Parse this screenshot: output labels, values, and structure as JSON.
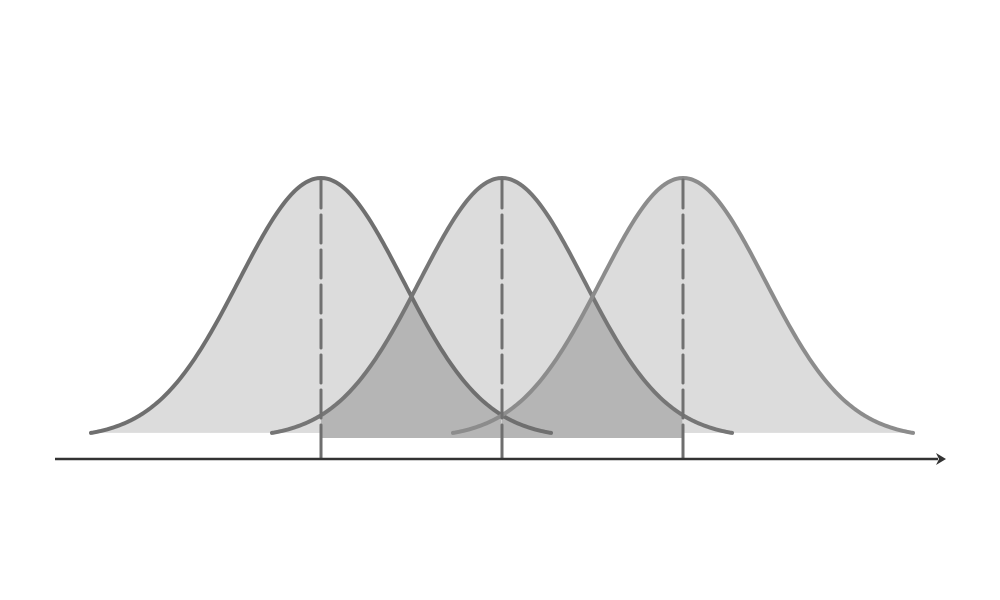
{
  "diagram": {
    "type": "overlapping-normal-distributions",
    "curve_count": 3,
    "equal_spread": true,
    "overlap_regions_shaded": true,
    "mean_lines": "dashed",
    "axis_arrow": "right",
    "colors": {
      "curve_fill": "#dcdcdc",
      "overlap_fill": "#b5b5b5",
      "outline_left": "#6f6f6f",
      "outline_middle": "#767676",
      "outline_right": "#8c8c8c",
      "mean_line": "#707070",
      "tick": "#6e6e6e",
      "axis": "#333333",
      "background": "#ffffff"
    }
  }
}
